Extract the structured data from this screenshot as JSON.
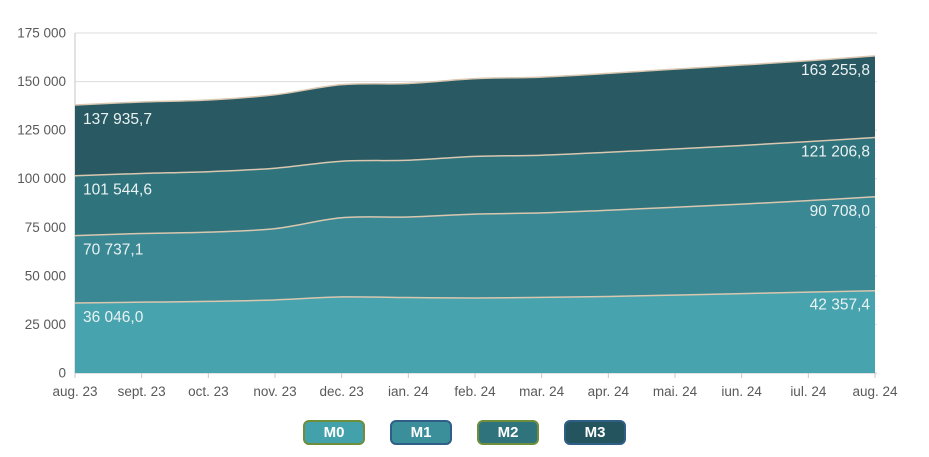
{
  "chart_data": {
    "type": "area",
    "title": "",
    "x_categories": [
      "aug. 23",
      "sept. 23",
      "oct. 23",
      "nov. 23",
      "dec. 23",
      "ian. 24",
      "feb. 24",
      "mar. 24",
      "apr. 24",
      "mai. 24",
      "iun. 24",
      "iul. 24",
      "aug. 24"
    ],
    "y_ticks": [
      "0",
      "25 000",
      "50 000",
      "75 000",
      "100 000",
      "125 000",
      "150 000",
      "175 000"
    ],
    "ylim": [
      0,
      175000
    ],
    "grid": true,
    "legend_position": "bottom",
    "boundary_line_color": "#d9c7b0",
    "series": [
      {
        "name": "M0",
        "color": "#47a3ad",
        "values": [
          36046.0,
          36450,
          36850,
          37600,
          39150,
          38850,
          38600,
          38900,
          39400,
          40100,
          40850,
          41600,
          42357.4
        ],
        "first_label": "36 046,0",
        "last_label": "42 357,4"
      },
      {
        "name": "M1",
        "color": "#398893",
        "values": [
          70737.1,
          71800,
          72500,
          74300,
          79900,
          80300,
          81800,
          82400,
          83800,
          85300,
          86900,
          88700,
          90708.0
        ],
        "first_label": "70 737,1",
        "last_label": "90 708,0"
      },
      {
        "name": "M2",
        "color": "#2f737c",
        "values": [
          101544.6,
          102700,
          103600,
          105400,
          109000,
          109500,
          111500,
          112100,
          113600,
          115300,
          117100,
          119100,
          121206.8
        ],
        "first_label": "101 544,6",
        "last_label": "121 206,8"
      },
      {
        "name": "M3",
        "color": "#295a63",
        "values": [
          137935.7,
          139500,
          140500,
          143200,
          148400,
          149000,
          151500,
          152300,
          154200,
          156400,
          158500,
          160700,
          163255.8
        ],
        "first_label": "137 935,7",
        "last_label": "163 255,8"
      }
    ]
  },
  "axis": {
    "text_color": "#595959",
    "grid_color": "#dcdcdc",
    "axis_color": "#c6c6c6"
  },
  "value_label_color": "#eaf2f3",
  "legend": {
    "items": [
      {
        "label": "M0",
        "fill": "#42a1ab",
        "border": "#6f8e3b"
      },
      {
        "label": "M1",
        "fill": "#3a8f9a",
        "border": "#2f5e87"
      },
      {
        "label": "M2",
        "fill": "#2f737c",
        "border": "#6f8e3b"
      },
      {
        "label": "M3",
        "fill": "#24555f",
        "border": "#2f5e87"
      }
    ]
  }
}
